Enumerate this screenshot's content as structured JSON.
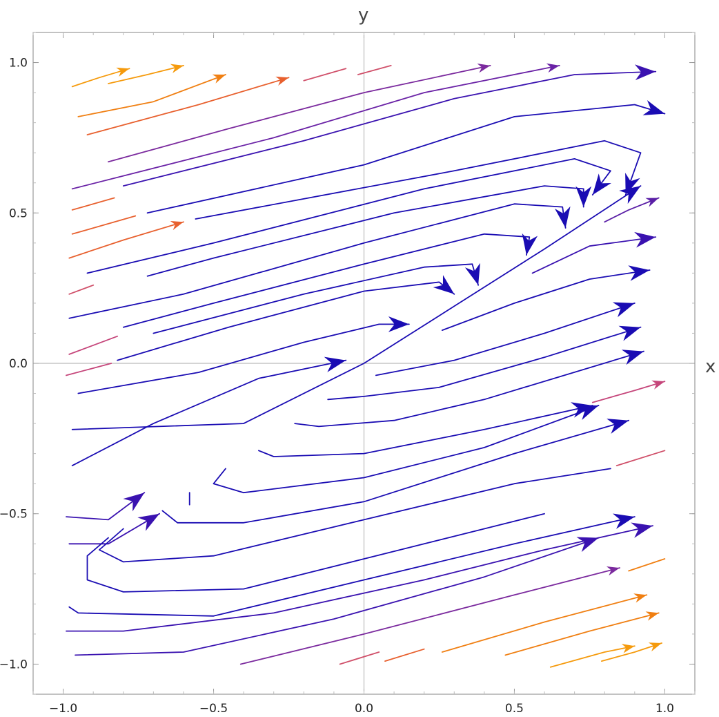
{
  "chart_data": {
    "type": "streamplot",
    "xlabel": "x",
    "ylabel": "y",
    "xlim": [
      -1.1,
      1.1
    ],
    "ylim": [
      -1.1,
      1.1
    ],
    "x_ticks": [
      {
        "value": -1.0,
        "label": "−1.0"
      },
      {
        "value": -0.5,
        "label": "−0.5"
      },
      {
        "value": 0.0,
        "label": "0.0"
      },
      {
        "value": 0.5,
        "label": "0.5"
      },
      {
        "value": 1.0,
        "label": "1.0"
      }
    ],
    "y_ticks": [
      {
        "value": -1.0,
        "label": "−1.0"
      },
      {
        "value": -0.5,
        "label": "−0.5"
      },
      {
        "value": 0.0,
        "label": "0.0"
      },
      {
        "value": 0.5,
        "label": "0.5"
      },
      {
        "value": 1.0,
        "label": "1.0"
      }
    ],
    "grid": false,
    "legend": "none",
    "color_scale": [
      "#1a0cb3",
      "#3a12b0",
      "#7b2a9e",
      "#c5457a",
      "#e8602e",
      "#f59a0c"
    ],
    "streamlines": [
      {
        "color": "#f59a0c",
        "arrow": "start",
        "pts": [
          [
            -0.6,
            0.99
          ],
          [
            -0.72,
            0.96
          ],
          [
            -0.85,
            0.93
          ]
        ]
      },
      {
        "color": "#f59a0c",
        "arrow": "start",
        "pts": [
          [
            -0.78,
            0.98
          ],
          [
            -0.88,
            0.95
          ],
          [
            -0.97,
            0.92
          ]
        ]
      },
      {
        "color": "#f07f12",
        "arrow": "start",
        "pts": [
          [
            -0.46,
            0.96
          ],
          [
            -0.7,
            0.87
          ],
          [
            -0.95,
            0.82
          ]
        ]
      },
      {
        "color": "#e8602e",
        "arrow": "start",
        "pts": [
          [
            -0.25,
            0.95
          ],
          [
            -0.55,
            0.86
          ],
          [
            -0.92,
            0.76
          ]
        ]
      },
      {
        "color": "#d0506a",
        "arrow": "none",
        "pts": [
          [
            -0.06,
            0.98
          ],
          [
            -0.2,
            0.94
          ]
        ]
      },
      {
        "color": "#d0506a",
        "arrow": "none",
        "pts": [
          [
            0.09,
            0.99
          ],
          [
            -0.02,
            0.96
          ]
        ]
      },
      {
        "color": "#7b2a9e",
        "arrow": "start",
        "pts": [
          [
            0.42,
            0.99
          ],
          [
            0.0,
            0.9
          ],
          [
            -0.45,
            0.78
          ],
          [
            -0.85,
            0.67
          ]
        ]
      },
      {
        "color": "#6a22a6",
        "arrow": "start",
        "pts": [
          [
            0.65,
            0.99
          ],
          [
            0.2,
            0.9
          ],
          [
            -0.3,
            0.75
          ],
          [
            -0.97,
            0.58
          ]
        ]
      },
      {
        "color": "#3a12b0",
        "arrow": "start",
        "pts": [
          [
            0.97,
            0.97
          ],
          [
            0.7,
            0.96
          ],
          [
            0.3,
            0.88
          ],
          [
            -0.2,
            0.74
          ],
          [
            -0.8,
            0.59
          ]
        ]
      },
      {
        "color": "#1a0cb3",
        "arrow": "start",
        "pts": [
          [
            1.0,
            0.83
          ],
          [
            0.9,
            0.86
          ],
          [
            0.5,
            0.82
          ],
          [
            0.0,
            0.66
          ],
          [
            -0.72,
            0.5
          ]
        ]
      },
      {
        "color": "#1a0cb3",
        "arrow": "start",
        "pts": [
          [
            0.87,
            0.56
          ],
          [
            0.92,
            0.7
          ],
          [
            0.8,
            0.74
          ],
          [
            0.3,
            0.64
          ],
          [
            -0.56,
            0.48
          ]
        ]
      },
      {
        "color": "#1a0cb3",
        "arrow": "start",
        "pts": [
          [
            0.76,
            0.56
          ],
          [
            0.82,
            0.64
          ],
          [
            0.7,
            0.68
          ],
          [
            0.2,
            0.58
          ],
          [
            -0.5,
            0.4
          ],
          [
            -0.92,
            0.3
          ]
        ]
      },
      {
        "color": "#1a0cb3",
        "arrow": "start",
        "pts": [
          [
            0.73,
            0.52
          ],
          [
            0.73,
            0.58
          ],
          [
            0.6,
            0.59
          ],
          [
            0.1,
            0.5
          ],
          [
            -0.5,
            0.35
          ],
          [
            -0.72,
            0.29
          ]
        ]
      },
      {
        "color": "#1a0cb3",
        "arrow": "start",
        "pts": [
          [
            0.67,
            0.45
          ],
          [
            0.66,
            0.52
          ],
          [
            0.5,
            0.53
          ],
          [
            0.0,
            0.4
          ],
          [
            -0.6,
            0.23
          ],
          [
            -0.98,
            0.15
          ]
        ]
      },
      {
        "color": "#1a0cb3",
        "arrow": "start",
        "pts": [
          [
            0.54,
            0.36
          ],
          [
            0.55,
            0.42
          ],
          [
            0.4,
            0.43
          ],
          [
            0.0,
            0.33
          ],
          [
            -0.5,
            0.2
          ],
          [
            -0.8,
            0.12
          ]
        ]
      },
      {
        "color": "#1a0cb3",
        "arrow": "start",
        "pts": [
          [
            0.38,
            0.26
          ],
          [
            0.36,
            0.33
          ],
          [
            0.2,
            0.32
          ],
          [
            -0.2,
            0.23
          ],
          [
            -0.7,
            0.1
          ]
        ]
      },
      {
        "color": "#1a0cb3",
        "arrow": "start",
        "pts": [
          [
            0.3,
            0.23
          ],
          [
            0.25,
            0.27
          ],
          [
            0.0,
            0.24
          ],
          [
            -0.45,
            0.12
          ],
          [
            -0.82,
            0.01
          ]
        ]
      },
      {
        "color": "#1a0cb3",
        "arrow": "start",
        "pts": [
          [
            0.15,
            0.13
          ],
          [
            0.05,
            0.13
          ],
          [
            -0.2,
            0.07
          ],
          [
            -0.55,
            -0.03
          ],
          [
            -0.95,
            -0.1
          ]
        ]
      },
      {
        "color": "#1a0cb3",
        "arrow": "start",
        "pts": [
          [
            0.92,
            0.59
          ],
          [
            0.6,
            0.38
          ],
          [
            0.3,
            0.19
          ],
          [
            0.0,
            0.0
          ],
          [
            -0.4,
            -0.2
          ],
          [
            -0.97,
            -0.22
          ]
        ]
      },
      {
        "color": "#1a0cb3",
        "arrow": "start",
        "pts": [
          [
            -0.06,
            0.01
          ],
          [
            -0.35,
            -0.05
          ],
          [
            -0.7,
            -0.2
          ],
          [
            -0.97,
            -0.34
          ]
        ]
      },
      {
        "color": "#3a12b0",
        "arrow": "start",
        "pts": [
          [
            -0.73,
            -0.43
          ],
          [
            -0.85,
            -0.52
          ],
          [
            -0.99,
            -0.51
          ]
        ]
      },
      {
        "color": "#3a12b0",
        "arrow": "start",
        "pts": [
          [
            -0.68,
            -0.5
          ],
          [
            -0.85,
            -0.6
          ],
          [
            -0.98,
            -0.6
          ]
        ]
      },
      {
        "color": "#1a0cb3",
        "arrow": "none",
        "pts": [
          [
            -0.58,
            -0.47
          ],
          [
            -0.58,
            -0.43
          ]
        ]
      },
      {
        "color": "#1a0cb3",
        "arrow": "none",
        "pts": [
          [
            -0.85,
            -0.58
          ],
          [
            -0.92,
            -0.64
          ],
          [
            -0.92,
            -0.72
          ],
          [
            -0.8,
            -0.76
          ],
          [
            -0.4,
            -0.75
          ],
          [
            0.2,
            -0.6
          ],
          [
            0.6,
            -0.5
          ]
        ]
      },
      {
        "color": "#1a0cb3",
        "arrow": "none",
        "pts": [
          [
            -0.8,
            -0.55
          ],
          [
            -0.88,
            -0.62
          ],
          [
            -0.8,
            -0.66
          ],
          [
            -0.5,
            -0.64
          ],
          [
            0.0,
            -0.52
          ],
          [
            0.5,
            -0.4
          ],
          [
            0.82,
            -0.35
          ]
        ]
      },
      {
        "color": "#1a0cb3",
        "arrow": "end",
        "pts": [
          [
            -0.67,
            -0.49
          ],
          [
            -0.62,
            -0.53
          ],
          [
            -0.4,
            -0.53
          ],
          [
            0.0,
            -0.46
          ],
          [
            0.5,
            -0.3
          ],
          [
            0.88,
            -0.19
          ]
        ]
      },
      {
        "color": "#1a0cb3",
        "arrow": "end",
        "pts": [
          [
            -0.46,
            -0.35
          ],
          [
            -0.5,
            -0.4
          ],
          [
            -0.4,
            -0.43
          ],
          [
            0.0,
            -0.38
          ],
          [
            0.4,
            -0.28
          ],
          [
            0.78,
            -0.14
          ]
        ]
      },
      {
        "color": "#1a0cb3",
        "arrow": "end",
        "pts": [
          [
            -0.35,
            -0.29
          ],
          [
            -0.3,
            -0.31
          ],
          [
            0.0,
            -0.3
          ],
          [
            0.4,
            -0.22
          ],
          [
            0.76,
            -0.14
          ]
        ]
      },
      {
        "color": "#1a0cb3",
        "arrow": "end",
        "pts": [
          [
            -0.23,
            -0.2
          ],
          [
            -0.15,
            -0.21
          ],
          [
            0.1,
            -0.19
          ],
          [
            0.4,
            -0.12
          ],
          [
            0.93,
            0.04
          ]
        ]
      },
      {
        "color": "#1a0cb3",
        "arrow": "end",
        "pts": [
          [
            -0.12,
            -0.12
          ],
          [
            0.0,
            -0.11
          ],
          [
            0.25,
            -0.08
          ],
          [
            0.6,
            0.02
          ],
          [
            0.92,
            0.12
          ]
        ]
      },
      {
        "color": "#1a0cb3",
        "arrow": "end",
        "pts": [
          [
            0.04,
            -0.04
          ],
          [
            0.3,
            0.01
          ],
          [
            0.6,
            0.1
          ],
          [
            0.9,
            0.2
          ]
        ]
      },
      {
        "color": "#1a0cb3",
        "arrow": "end",
        "pts": [
          [
            0.26,
            0.11
          ],
          [
            0.5,
            0.2
          ],
          [
            0.75,
            0.28
          ],
          [
            0.95,
            0.31
          ]
        ]
      },
      {
        "color": "#3a12b0",
        "arrow": "end",
        "pts": [
          [
            0.56,
            0.3
          ],
          [
            0.75,
            0.39
          ],
          [
            0.97,
            0.42
          ]
        ]
      },
      {
        "color": "#5a1fa6",
        "arrow": "end",
        "pts": [
          [
            0.8,
            0.47
          ],
          [
            0.88,
            0.51
          ],
          [
            0.98,
            0.55
          ]
        ]
      },
      {
        "color": "#1a0cb3",
        "arrow": "end",
        "pts": [
          [
            -0.98,
            -0.81
          ],
          [
            -0.95,
            -0.83
          ],
          [
            -0.5,
            -0.84
          ],
          [
            0.0,
            -0.72
          ],
          [
            0.5,
            -0.6
          ],
          [
            0.9,
            -0.51
          ]
        ]
      },
      {
        "color": "#3a12b0",
        "arrow": "end",
        "pts": [
          [
            -0.99,
            -0.89
          ],
          [
            -0.8,
            -0.89
          ],
          [
            -0.3,
            -0.83
          ],
          [
            0.2,
            -0.72
          ],
          [
            0.6,
            -0.62
          ],
          [
            0.96,
            -0.54
          ]
        ]
      },
      {
        "color": "#3a12b0",
        "arrow": "end",
        "pts": [
          [
            -0.96,
            -0.97
          ],
          [
            -0.6,
            -0.96
          ],
          [
            -0.1,
            -0.85
          ],
          [
            0.4,
            -0.71
          ],
          [
            0.78,
            -0.58
          ]
        ]
      },
      {
        "color": "#7b2a9e",
        "arrow": "end",
        "pts": [
          [
            -0.41,
            -1.0
          ],
          [
            0.0,
            -0.9
          ],
          [
            0.5,
            -0.77
          ],
          [
            0.85,
            -0.68
          ]
        ]
      },
      {
        "color": "#c5457a",
        "arrow": "end",
        "pts": [
          [
            0.76,
            -0.13
          ],
          [
            0.9,
            -0.09
          ],
          [
            1.0,
            -0.06
          ]
        ]
      },
      {
        "color": "#d0506a",
        "arrow": "none",
        "pts": [
          [
            0.84,
            -0.34
          ],
          [
            1.0,
            -0.29
          ]
        ]
      },
      {
        "color": "#f07f12",
        "arrow": "none",
        "pts": [
          [
            0.88,
            -0.69
          ],
          [
            1.0,
            -0.65
          ]
        ]
      },
      {
        "color": "#f07f12",
        "arrow": "end",
        "pts": [
          [
            0.26,
            -0.96
          ],
          [
            0.6,
            -0.86
          ],
          [
            0.94,
            -0.77
          ]
        ]
      },
      {
        "color": "#f07f12",
        "arrow": "end",
        "pts": [
          [
            0.47,
            -0.97
          ],
          [
            0.75,
            -0.89
          ],
          [
            0.98,
            -0.83
          ]
        ]
      },
      {
        "color": "#f59a0c",
        "arrow": "end",
        "pts": [
          [
            0.62,
            -1.01
          ],
          [
            0.8,
            -0.96
          ],
          [
            0.9,
            -0.94
          ]
        ]
      },
      {
        "color": "#f59a0c",
        "arrow": "end",
        "pts": [
          [
            0.79,
            -0.99
          ],
          [
            0.9,
            -0.96
          ],
          [
            0.99,
            -0.93
          ]
        ]
      },
      {
        "color": "#e8602e",
        "arrow": "none",
        "pts": [
          [
            0.07,
            -0.99
          ],
          [
            0.2,
            -0.95
          ]
        ]
      },
      {
        "color": "#d0506a",
        "arrow": "none",
        "pts": [
          [
            -0.08,
            -1.0
          ],
          [
            0.05,
            -0.96
          ]
        ]
      },
      {
        "color": "#e8602e",
        "arrow": "none",
        "pts": [
          [
            -0.97,
            0.51
          ],
          [
            -0.83,
            0.55
          ]
        ]
      },
      {
        "color": "#e8602e",
        "arrow": "none",
        "pts": [
          [
            -0.97,
            0.43
          ],
          [
            -0.76,
            0.49
          ]
        ]
      },
      {
        "color": "#e8602e",
        "arrow": "start",
        "pts": [
          [
            -0.6,
            0.47
          ],
          [
            -0.8,
            0.41
          ],
          [
            -0.98,
            0.35
          ]
        ]
      },
      {
        "color": "#d0506a",
        "arrow": "none",
        "pts": [
          [
            -0.98,
            0.23
          ],
          [
            -0.9,
            0.26
          ]
        ]
      },
      {
        "color": "#c5457a",
        "arrow": "none",
        "pts": [
          [
            -0.98,
            0.03
          ],
          [
            -0.82,
            0.09
          ]
        ]
      },
      {
        "color": "#c5457a",
        "arrow": "none",
        "pts": [
          [
            -0.99,
            -0.04
          ],
          [
            -0.84,
            0.0
          ]
        ]
      }
    ]
  }
}
